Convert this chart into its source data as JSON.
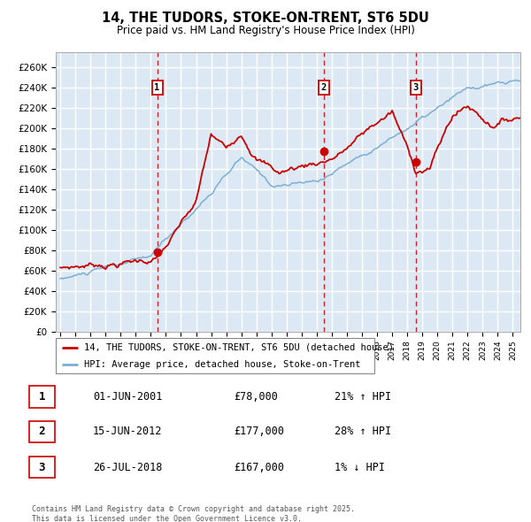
{
  "title_line1": "14, THE TUDORS, STOKE-ON-TRENT, ST6 5DU",
  "title_line2": "Price paid vs. HM Land Registry's House Price Index (HPI)",
  "ylabel_ticks": [
    "£0",
    "£20K",
    "£40K",
    "£60K",
    "£80K",
    "£100K",
    "£120K",
    "£140K",
    "£160K",
    "£180K",
    "£200K",
    "£220K",
    "£240K",
    "£260K"
  ],
  "ytick_values": [
    0,
    20000,
    40000,
    60000,
    80000,
    100000,
    120000,
    140000,
    160000,
    180000,
    200000,
    220000,
    240000,
    260000
  ],
  "ylim": [
    0,
    275000
  ],
  "xlim_start": 1994.7,
  "xlim_end": 2025.5,
  "plot_bg_color": "#dce9f5",
  "grid_color": "#ffffff",
  "red_line_color": "#cc0000",
  "blue_line_color": "#7bafd4",
  "sale1_date": 2001.42,
  "sale1_price": 78000,
  "sale1_label": "1",
  "sale2_date": 2012.46,
  "sale2_price": 177000,
  "sale2_label": "2",
  "sale3_date": 2018.56,
  "sale3_price": 167000,
  "sale3_label": "3",
  "vline_color": "#cc0000",
  "legend_red_label": "14, THE TUDORS, STOKE-ON-TRENT, ST6 5DU (detached house)",
  "legend_blue_label": "HPI: Average price, detached house, Stoke-on-Trent",
  "table_rows": [
    {
      "num": "1",
      "date": "01-JUN-2001",
      "price": "£78,000",
      "pct": "21% ↑ HPI"
    },
    {
      "num": "2",
      "date": "15-JUN-2012",
      "price": "£177,000",
      "pct": "28% ↑ HPI"
    },
    {
      "num": "3",
      "date": "26-JUL-2018",
      "price": "£167,000",
      "pct": "1% ↓ HPI"
    }
  ],
  "footnote": "Contains HM Land Registry data © Crown copyright and database right 2025.\nThis data is licensed under the Open Government Licence v3.0."
}
